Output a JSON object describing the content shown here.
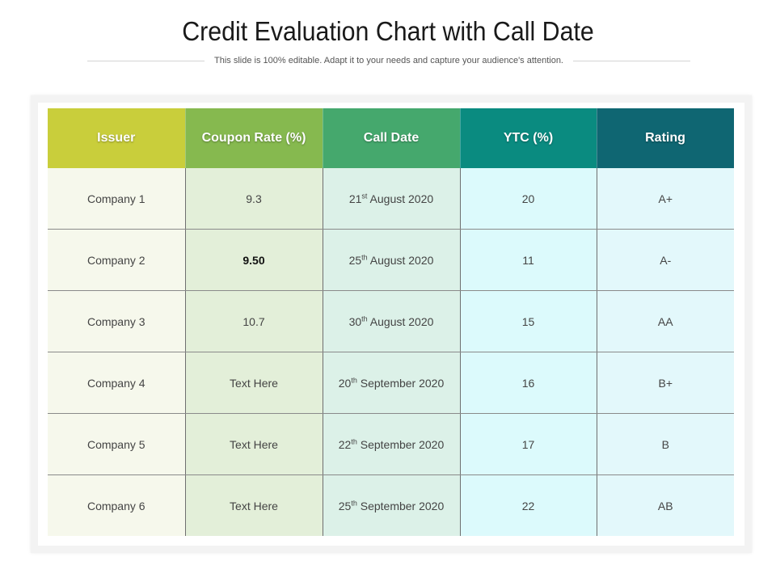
{
  "title": "Credit Evaluation Chart with Call Date",
  "subtitle": "This slide is 100% editable. Adapt it to your needs and capture your audience's attention.",
  "colors": {
    "header": [
      "#c9ce3b",
      "#86b94f",
      "#45a86d",
      "#0a8b80",
      "#0f6672"
    ],
    "column_fill": [
      "#f6f8ec",
      "#e3efd9",
      "#dcf1e8",
      "#dcfafc",
      "#e3f8fb"
    ]
  },
  "table": {
    "headers": [
      "Issuer",
      "Coupon Rate (%)",
      "Call Date",
      "YTC (%)",
      "Rating"
    ],
    "rows": [
      {
        "issuer": "Company 1",
        "coupon": "9.3",
        "date_day": "21",
        "date_suffix": "st",
        "date_rest": " August 2020",
        "ytc": "20",
        "rating": "A+"
      },
      {
        "issuer": "Company 2",
        "coupon": "9.50",
        "date_day": "25",
        "date_suffix": "th",
        "date_rest": " August 2020",
        "ytc": "11",
        "rating": "A-"
      },
      {
        "issuer": "Company 3",
        "coupon": "10.7",
        "date_day": "30",
        "date_suffix": "th",
        "date_rest": " August 2020",
        "ytc": "15",
        "rating": "AA"
      },
      {
        "issuer": "Company 4",
        "coupon": "Text Here",
        "date_day": "20",
        "date_suffix": "th",
        "date_rest": " September 2020",
        "ytc": "16",
        "rating": "B+"
      },
      {
        "issuer": "Company 5",
        "coupon": "Text Here",
        "date_day": "22",
        "date_suffix": "th",
        "date_rest": " September 2020",
        "ytc": "17",
        "rating": "B"
      },
      {
        "issuer": "Company 6",
        "coupon": "Text Here",
        "date_day": "25",
        "date_suffix": "th",
        "date_rest": " September 2020",
        "ytc": "22",
        "rating": "AB"
      }
    ]
  }
}
